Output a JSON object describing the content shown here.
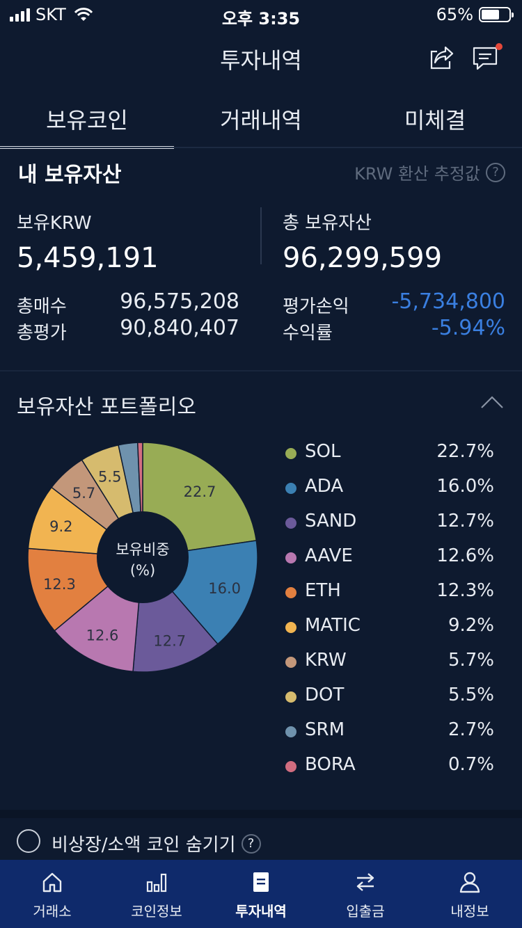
{
  "status_bar": {
    "carrier": "SKT",
    "time": "오후 3:35",
    "battery": "65%"
  },
  "header": {
    "title": "투자내역",
    "share_icon": "share-icon",
    "message_icon": "message-icon"
  },
  "tabs": [
    {
      "label": "보유코인",
      "active": true
    },
    {
      "label": "거래내역",
      "active": false
    },
    {
      "label": "미체결",
      "active": false
    }
  ],
  "assets": {
    "heading": "내 보유자산",
    "estimate_note": "KRW 환산 추정값",
    "krw_label": "보유KRW",
    "krw_value": "5,459,191",
    "total_label": "총 보유자산",
    "total_value": "96,299,599",
    "buy_label": "총매수",
    "buy_value": "96,575,208",
    "eval_label": "총평가",
    "eval_value": "90,840,407",
    "pnl_label": "평가손익",
    "pnl_value": "-5,734,800",
    "rate_label": "수익률",
    "rate_value": "-5.94%",
    "negative_color": "#3a7fe0"
  },
  "portfolio": {
    "heading": "보유자산 포트폴리오",
    "center_label_1": "보유비중",
    "center_label_2": "(%)"
  },
  "chart_data": {
    "type": "pie",
    "unit": "%",
    "slices": [
      {
        "name": "SOL",
        "value": 22.7,
        "label": "22.7",
        "pct": "22.7%",
        "color": "#98ac55"
      },
      {
        "name": "ADA",
        "value": 16.0,
        "label": "16.0",
        "pct": "16.0%",
        "color": "#3b80b3"
      },
      {
        "name": "SAND",
        "value": 12.7,
        "label": "12.7",
        "pct": "12.7%",
        "color": "#6b5a9a"
      },
      {
        "name": "AAVE",
        "value": 12.6,
        "label": "12.6",
        "pct": "12.6%",
        "color": "#b878b0"
      },
      {
        "name": "ETH",
        "value": 12.3,
        "label": "12.3",
        "pct": "12.3%",
        "color": "#e28040"
      },
      {
        "name": "MATIC",
        "value": 9.2,
        "label": "9.2",
        "pct": "9.2%",
        "color": "#f1b451"
      },
      {
        "name": "KRW",
        "value": 5.7,
        "label": "5.7",
        "pct": "5.7%",
        "color": "#c3977a"
      },
      {
        "name": "DOT",
        "value": 5.5,
        "label": "5.5",
        "pct": "5.5%",
        "color": "#d6bb6e"
      },
      {
        "name": "SRM",
        "value": 2.7,
        "label": "",
        "pct": "2.7%",
        "color": "#6f92ad"
      },
      {
        "name": "BORA",
        "value": 0.7,
        "label": "",
        "pct": "0.7%",
        "color": "#d16d80"
      }
    ]
  },
  "hide_option": {
    "label": "비상장/소액 코인 숨기기",
    "checked": false
  },
  "bottom_nav": [
    {
      "label": "거래소",
      "icon": "home-icon",
      "active": false
    },
    {
      "label": "코인정보",
      "icon": "bar-chart-icon",
      "active": false
    },
    {
      "label": "투자내역",
      "icon": "document-icon",
      "active": true
    },
    {
      "label": "입출금",
      "icon": "transfer-icon",
      "active": false
    },
    {
      "label": "내정보",
      "icon": "user-icon",
      "active": false
    }
  ]
}
